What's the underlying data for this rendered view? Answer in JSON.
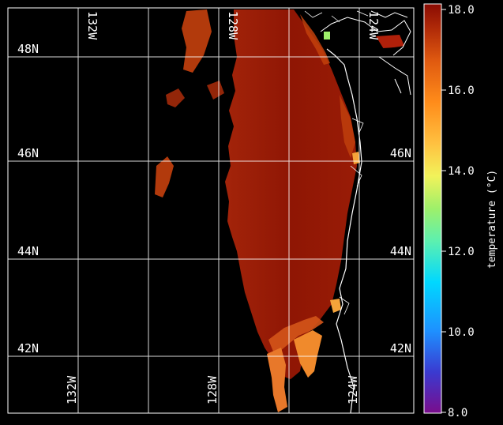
{
  "map": {
    "latitude_labels": [
      "48N",
      "46N",
      "44N",
      "42N"
    ],
    "longitude_labels_top": [
      "132W",
      "128W",
      "124W"
    ],
    "longitude_labels_bottom": [
      "132W",
      "128W",
      "124W"
    ]
  },
  "colorbar": {
    "label": "temperature (°C)",
    "ticks": [
      "18.0",
      "16.0",
      "14.0",
      "12.0",
      "10.0",
      "8.0"
    ],
    "range": [
      8.0,
      18.0
    ],
    "colormap": [
      "#7a0d8c",
      "#3a3ad0",
      "#1e90ff",
      "#00d8ff",
      "#5cf0b0",
      "#9ef06a",
      "#f2f25a",
      "#ffc040",
      "#ff8c1a",
      "#e05a10",
      "#b02a08",
      "#8a0b03"
    ]
  },
  "colors": {
    "sst_warm": "#8f1604",
    "sst_mid": "#c2410c",
    "sst_cool": "#f08a2c",
    "coastline": "#ffffff",
    "grid": "#ffffff",
    "background": "#000000"
  }
}
